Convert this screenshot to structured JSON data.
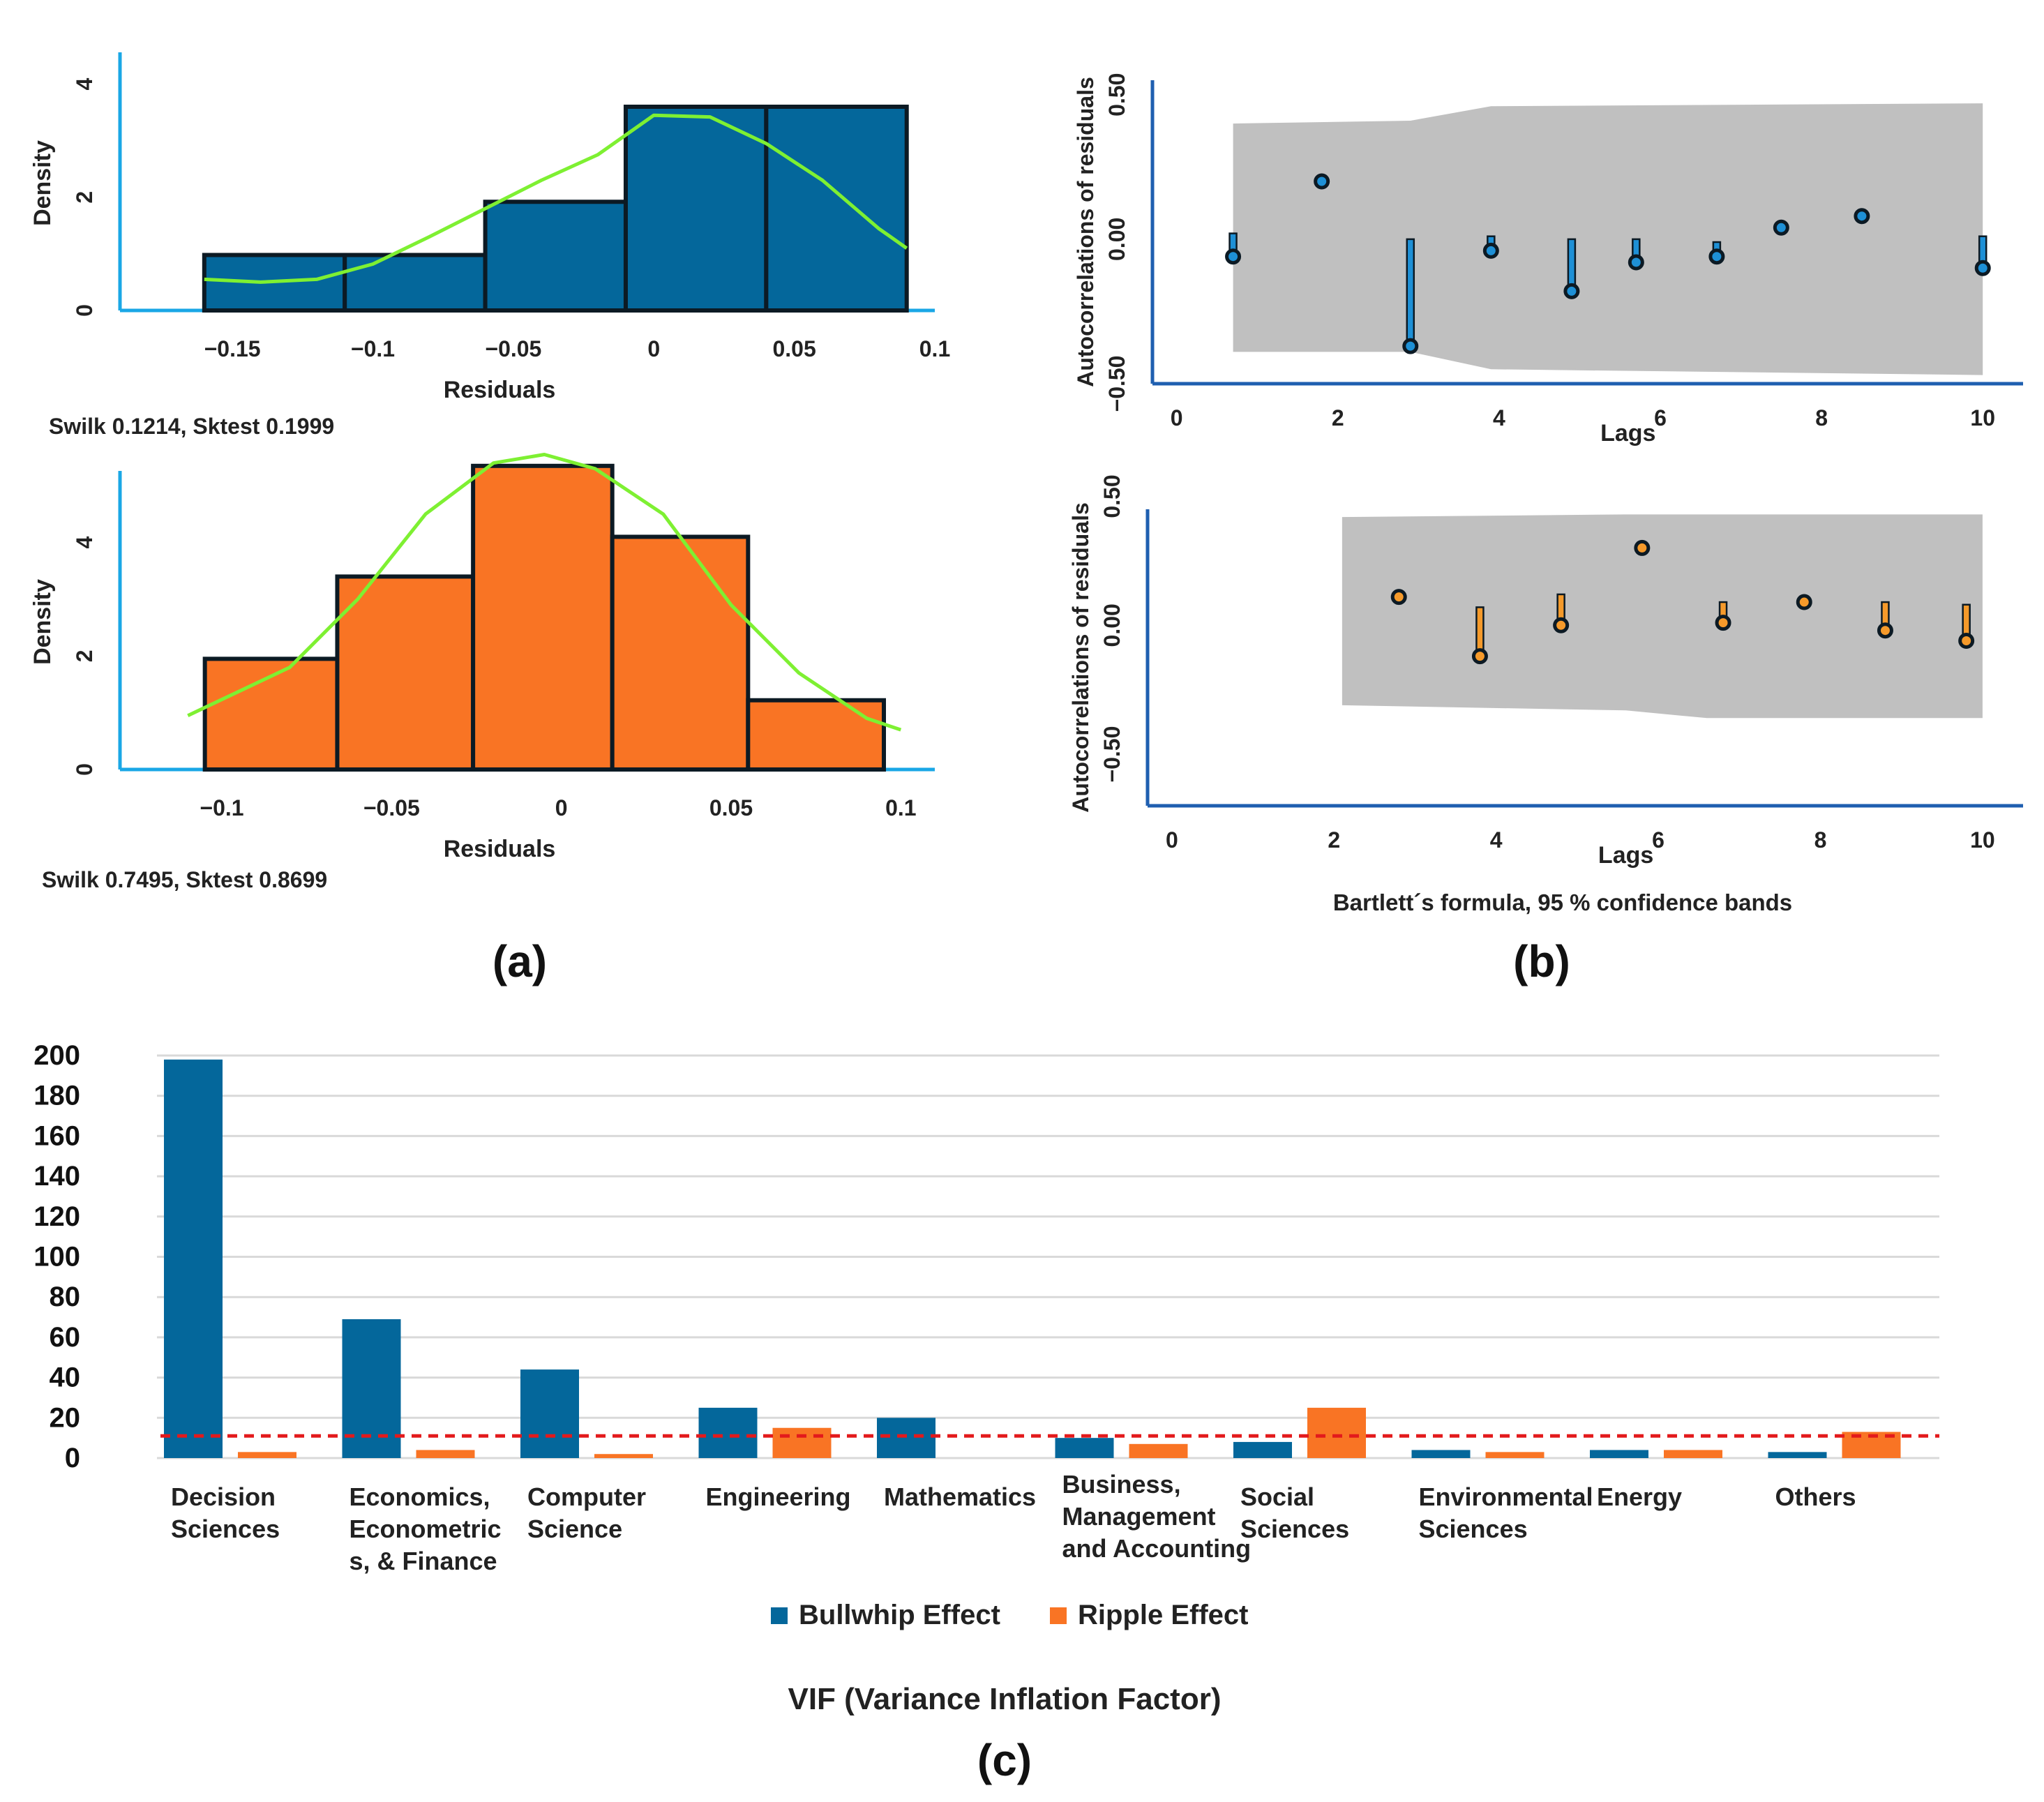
{
  "colors": {
    "bullwhip": "#04679b",
    "ripple": "#f97424",
    "stem_blue": "#1e90d6",
    "stem_orange": "#f59a2b",
    "curve": "#7ef032",
    "axis": "#1aa7e6",
    "band": "#c0c0c0",
    "threshold": "#e31a1c",
    "grid": "#d9d9d9"
  },
  "panel_labels": {
    "a": "(a)",
    "b": "(b)",
    "c": "(c)"
  },
  "chart_data": [
    {
      "id": "hist-top",
      "type": "bar",
      "kind": "histogram",
      "xlabel": "Residuals",
      "ylabel": "Density",
      "xlim": [
        -0.19,
        0.1
      ],
      "ylim": [
        0,
        4.5
      ],
      "xticks": [
        -0.15,
        -0.1,
        -0.05,
        0,
        0.05,
        0.1
      ],
      "xtick_labels": [
        "−0.15",
        "−0.1",
        "−0.05",
        "0",
        "0.05",
        "0.1"
      ],
      "yticks": [
        0,
        2,
        4
      ],
      "ytick_labels": [
        "0",
        "2",
        "4"
      ],
      "bins": [
        {
          "x0": -0.16,
          "x1": -0.11,
          "value": 0.98
        },
        {
          "x0": -0.11,
          "x1": -0.06,
          "value": 0.98
        },
        {
          "x0": -0.06,
          "x1": -0.01,
          "value": 1.92
        },
        {
          "x0": -0.01,
          "x1": 0.04,
          "value": 3.6
        },
        {
          "x0": 0.04,
          "x1": 0.09,
          "value": 3.6
        }
      ],
      "density_curve": {
        "x": [
          -0.16,
          -0.14,
          -0.12,
          -0.1,
          -0.08,
          -0.06,
          -0.04,
          -0.02,
          0,
          0.02,
          0.04,
          0.06,
          0.08,
          0.09
        ],
        "y": [
          0.55,
          0.5,
          0.55,
          0.82,
          1.3,
          1.8,
          2.3,
          2.75,
          3.45,
          3.42,
          2.95,
          2.3,
          1.45,
          1.1
        ]
      },
      "note": "Swilk 0.1214, Sktest 0.1999"
    },
    {
      "id": "hist-bottom",
      "type": "bar",
      "kind": "histogram",
      "xlabel": "Residuals",
      "ylabel": "Density",
      "xlim": [
        -0.13,
        0.11
      ],
      "ylim": [
        0,
        5.2
      ],
      "xticks": [
        -0.1,
        -0.05,
        0,
        0.05,
        0.1
      ],
      "xtick_labels": [
        "−0.1",
        "−0.05",
        "0",
        "0.05",
        "0.1"
      ],
      "yticks": [
        0,
        2,
        4
      ],
      "ytick_labels": [
        "0",
        "2",
        "4"
      ],
      "bins": [
        {
          "x0": -0.105,
          "x1": -0.066,
          "value": 1.95
        },
        {
          "x0": -0.066,
          "x1": -0.026,
          "value": 3.4
        },
        {
          "x0": -0.026,
          "x1": 0.015,
          "value": 5.35
        },
        {
          "x0": 0.015,
          "x1": 0.055,
          "value": 4.1
        },
        {
          "x0": 0.055,
          "x1": 0.095,
          "value": 1.22
        }
      ],
      "density_curve": {
        "x": [
          -0.11,
          -0.08,
          -0.06,
          -0.04,
          -0.02,
          -0.005,
          0.01,
          0.03,
          0.05,
          0.07,
          0.09,
          0.1
        ],
        "y": [
          0.95,
          1.8,
          3.0,
          4.5,
          5.4,
          5.55,
          5.3,
          4.5,
          2.9,
          1.7,
          0.9,
          0.7
        ]
      },
      "note": "Swilk 0.7495, Sktest 0.8699"
    },
    {
      "id": "acf-top",
      "type": "scatter",
      "kind": "correlogram",
      "xlabel": "Lags",
      "ylabel": "Autocorrelations of residuals",
      "xlim": [
        -0.3,
        10.5
      ],
      "ylim": [
        -0.5,
        0.55
      ],
      "xticks": [
        0,
        2,
        4,
        6,
        8,
        10
      ],
      "xtick_labels": [
        "0",
        "2",
        "4",
        "6",
        "8",
        "10"
      ],
      "yticks": [
        -0.5,
        0,
        0.5
      ],
      "ytick_labels": [
        "−0.50",
        "0.00",
        "0.50"
      ],
      "lags": [
        0.7,
        1.8,
        2.9,
        3.9,
        4.9,
        5.7,
        6.7,
        7.5,
        8.5,
        10
      ],
      "values": [
        -0.06,
        0.2,
        -0.37,
        -0.04,
        -0.18,
        -0.08,
        -0.06,
        0.04,
        0.08,
        -0.1
      ],
      "stem_tops": [
        0.02,
        0.2,
        0.0,
        0.01,
        0.0,
        0.0,
        -0.01,
        0.04,
        0.08,
        0.01
      ],
      "band": {
        "lags": [
          0.7,
          2.9,
          3.9,
          10
        ],
        "upper": [
          0.4,
          0.41,
          0.46,
          0.47
        ],
        "lower": [
          -0.39,
          -0.39,
          -0.45,
          -0.47
        ]
      }
    },
    {
      "id": "acf-bottom",
      "type": "scatter",
      "kind": "correlogram",
      "xlabel": "Lags",
      "ylabel": "Autocorrelations of residuals",
      "xlim": [
        -0.3,
        10.5
      ],
      "ylim": [
        -0.7,
        0.45
      ],
      "xticks": [
        0,
        2,
        4,
        6,
        8,
        10
      ],
      "xtick_labels": [
        "0",
        "2",
        "4",
        "6",
        "8",
        "10"
      ],
      "yticks": [
        -0.5,
        0,
        0.5
      ],
      "ytick_labels": [
        "−0.50",
        "0.00",
        "0.50"
      ],
      "lags": [
        2.8,
        3.8,
        4.8,
        5.8,
        6.8,
        7.8,
        8.8,
        9.8
      ],
      "values": [
        0.11,
        -0.12,
        0.0,
        0.3,
        0.01,
        0.09,
        -0.02,
        -0.06
      ],
      "stem_tops": [
        0.11,
        0.07,
        0.12,
        0.3,
        0.09,
        0.09,
        0.09,
        0.08
      ],
      "band": {
        "lags": [
          2.1,
          5.6,
          6.6,
          10
        ],
        "upper": [
          0.42,
          0.43,
          0.43,
          0.43
        ],
        "lower": [
          -0.31,
          -0.33,
          -0.36,
          -0.36
        ]
      },
      "caption": "Bartlett´s formula, 95 % confidence bands"
    },
    {
      "id": "vif-bars",
      "type": "bar",
      "title": "VIF (Variance Inflation Factor)",
      "categories": [
        [
          "Decision",
          "Sciences"
        ],
        [
          "Economics,",
          "Econometric",
          "s, & Finance"
        ],
        [
          "Computer",
          "Science"
        ],
        [
          "Engineering"
        ],
        [
          "Mathematics"
        ],
        [
          "Business,",
          "Management",
          "and Accounting"
        ],
        [
          "Social",
          "Sciences"
        ],
        [
          "Environmental",
          "Sciences"
        ],
        [
          "Energy"
        ],
        [
          "Others"
        ]
      ],
      "series": [
        {
          "name": "Bullwhip Effect",
          "values": [
            198,
            69,
            44,
            25,
            20,
            10,
            8,
            4,
            4,
            3
          ]
        },
        {
          "name": "Ripple Effect",
          "values": [
            3,
            4,
            2,
            15,
            0,
            7,
            25,
            3,
            4,
            13
          ]
        }
      ],
      "threshold": 11,
      "ylim": [
        0,
        200
      ],
      "yticks": [
        0,
        20,
        40,
        60,
        80,
        100,
        120,
        140,
        160,
        180,
        200
      ],
      "ytick_labels": [
        "0",
        "20",
        "40",
        "60",
        "80",
        "100",
        "120",
        "140",
        "160",
        "180",
        "200"
      ],
      "legend": "bottom"
    }
  ]
}
